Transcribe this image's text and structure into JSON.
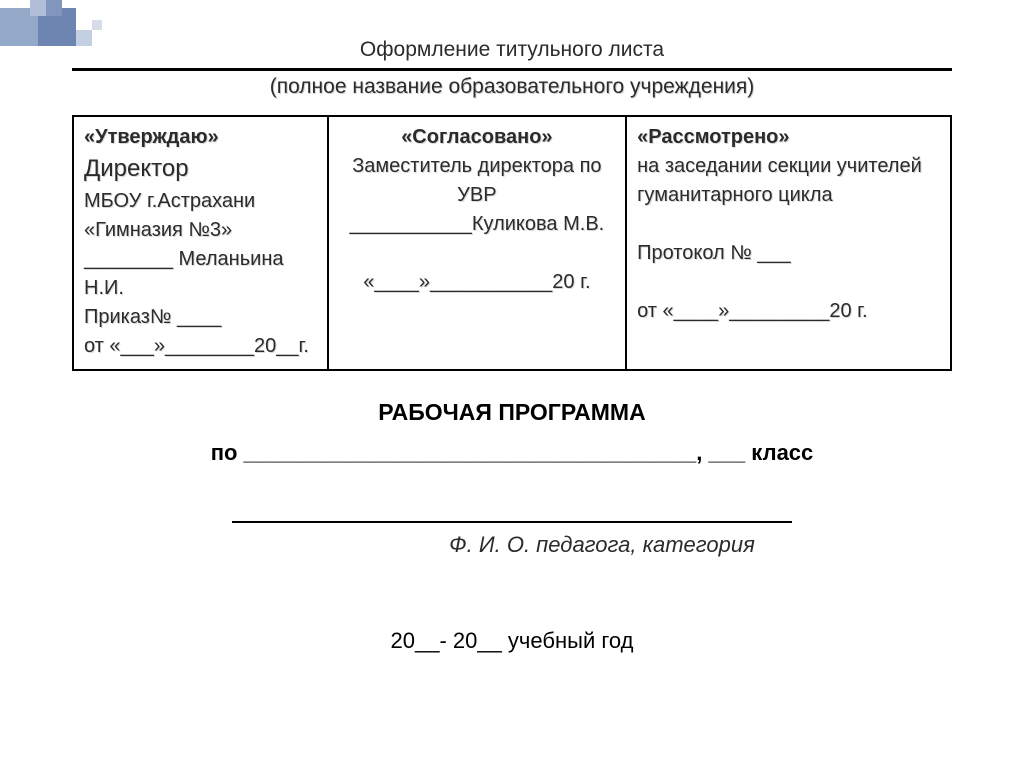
{
  "header": {
    "title": "Оформление титульного листа",
    "subtitle": "(полное название образовательного учреждения)"
  },
  "approval": {
    "col1": {
      "heading": "«Утверждаю»",
      "role": "Директор",
      "org1": "МБОУ г.Астрахани",
      "org2": "«Гимназия №3»",
      "name_line": "________   Меланьина Н.И.",
      "order_line": "Приказ№ ____",
      "date_line": "    от «___»________20__г."
    },
    "col2": {
      "heading": "«Согласовано»",
      "role": "Заместитель директора по УВР",
      "name_line": "___________Куликова М.В.",
      "date_line": "«____»___________20    г."
    },
    "col3": {
      "heading": "«Рассмотрено»",
      "line1": "на заседании секции учителей",
      "line2": "гуманитарного цикла",
      "protocol": "Протокол № ___",
      "date_line": "от  «____»_________20     г."
    }
  },
  "program": {
    "title": "РАБОЧАЯ ПРОГРАММА",
    "subject_line": "по _____________________________________,  ___ класс",
    "teacher_label": "Ф. И. О. педагога, категория",
    "year_line": "20__- 20__ учебный год"
  },
  "styling": {
    "background": "#ffffff",
    "text_color": "#000000",
    "shadow_color": "#d8d8d8",
    "border_color": "#000000",
    "decor_colors": [
      "#94a8c8",
      "#6d85b0",
      "#b0bed8",
      "#8096bc",
      "#c4cfe2",
      "#d6dde9"
    ],
    "base_fontsize": 21,
    "big_fontsize": 24,
    "title_fontsize": 23
  }
}
